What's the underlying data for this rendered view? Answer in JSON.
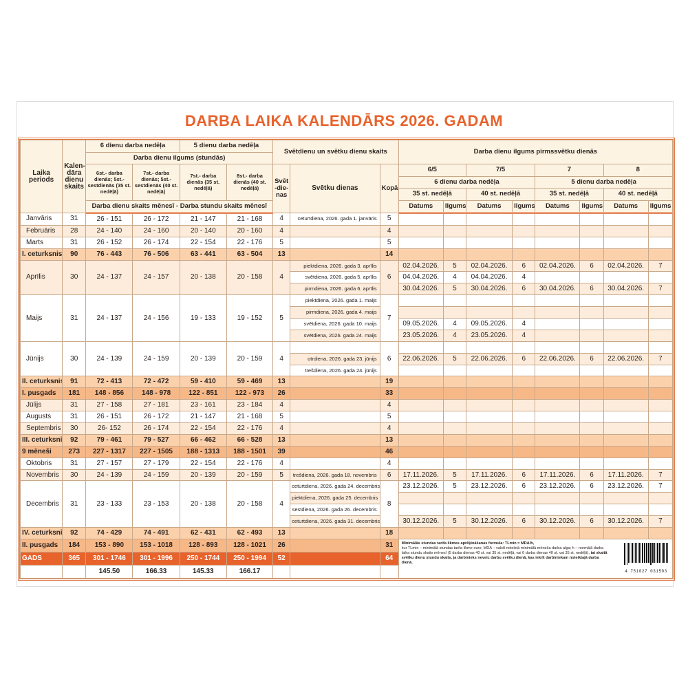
{
  "title": "DARBA LAIKA KALENDĀRS 2026. GADAM",
  "colors": {
    "accent": "#e8622c",
    "header_bg": "#fdf3e2",
    "stripe": "#fdecdb",
    "quarter": "#fbd1ac",
    "half": "#f7b888"
  },
  "header": {
    "period": "Laika periods",
    "calendar_days": "Kalen-dāra dienu skaits",
    "six_day_week": "6 dienu darba nedēļa",
    "five_day_week": "5 dienu darba nedēļa",
    "day_length": "Darba dienu ilgums (stundās)",
    "col1": "6st.- darba dienās; 5st.-sestdienās (35 st. nedēļā)",
    "col2": "7st.- darba dienās; 5st.- sestdienās (40 st. nedēļā)",
    "col3": "7st.- darba dienās (35 st. nedēļā)",
    "col4": "8st.- darba dienās (40 st. nedēļā)",
    "days_hours": "Darba dienu skaits mēnesī - Darba stundu skaits mēnesī",
    "holidays_group": "Svētdienu un svētku dienu skaits",
    "sundays": "Svēt-die-nas",
    "holidays": "Svētku dienas",
    "total": "Kopā",
    "pre_holiday": "Darba dienu ilgums pirmssvētku dienās",
    "modes": [
      "6/5",
      "7/5",
      "7",
      "8"
    ],
    "weeks": [
      "6 dienu darba nedēļa",
      "5 dienu darba nedēļa"
    ],
    "hours_week": [
      "35 st. nedēļā",
      "40 st. nedēļā",
      "35 st. nedēļā",
      "40 st. nedēļā"
    ],
    "date": "Datums",
    "length": "Ilgums"
  },
  "rows": [
    {
      "type": "month",
      "period": "Janvāris",
      "days": "31",
      "v": [
        "26 - 151",
        "26 - 172",
        "21 - 147",
        "21 - 168"
      ],
      "sundays": "4",
      "total": "5",
      "subs": [
        {
          "hol": "ceturtdiena, 2026. gada 1. janvāris",
          "pre": [
            "",
            "",
            "",
            "",
            "",
            "",
            "",
            ""
          ]
        }
      ]
    },
    {
      "type": "month",
      "period": "Februāris",
      "days": "28",
      "v": [
        "24 - 140",
        "24 - 160",
        "20 - 140",
        "20 - 160"
      ],
      "sundays": "4",
      "total": "4",
      "subs": [
        {
          "hol": "",
          "pre": [
            "",
            "",
            "",
            "",
            "",
            "",
            "",
            ""
          ]
        }
      ]
    },
    {
      "type": "month",
      "period": "Marts",
      "days": "31",
      "v": [
        "26 - 152",
        "26 - 174",
        "22 - 154",
        "22 - 176"
      ],
      "sundays": "5",
      "total": "5",
      "subs": [
        {
          "hol": "",
          "pre": [
            "",
            "",
            "",
            "",
            "",
            "",
            "",
            ""
          ]
        }
      ]
    },
    {
      "type": "quarter",
      "period": "I. ceturksnis",
      "days": "90",
      "v": [
        "76 - 443",
        "76 - 506",
        "63 - 441",
        "63 - 504"
      ],
      "sundays": "13",
      "total": "14",
      "subs": [
        {
          "hol": "",
          "pre": [
            "",
            "",
            "",
            "",
            "",
            "",
            "",
            ""
          ]
        }
      ]
    },
    {
      "type": "month",
      "period": "Aprīlis",
      "days": "30",
      "v": [
        "24 - 137",
        "24 - 157",
        "20 - 138",
        "20 - 158"
      ],
      "sundays": "4",
      "total": "6",
      "subs": [
        {
          "hol": "piektdiena, 2026. gada 3. aprīlis",
          "pre": [
            "02.04.2026.",
            "5",
            "02.04.2026.",
            "6",
            "02.04.2026.",
            "6",
            "02.04.2026.",
            "7"
          ]
        },
        {
          "hol": "svētdiena, 2026. gada 5. aprīlis",
          "pre": [
            "04.04.2026.",
            "4",
            "04.04.2026.",
            "4",
            "",
            "",
            "",
            ""
          ]
        },
        {
          "hol": "pirmdiena, 2026. gada 6. aprīlis",
          "pre": [
            "30.04.2026.",
            "5",
            "30.04.2026.",
            "6",
            "30.04.2026.",
            "6",
            "30.04.2026.",
            "7"
          ]
        }
      ]
    },
    {
      "type": "month",
      "period": "Maijs",
      "days": "31",
      "v": [
        "24 - 137",
        "24 - 156",
        "19 - 133",
        "19 - 152"
      ],
      "sundays": "5",
      "total": "7",
      "subs": [
        {
          "hol": "piektdiena, 2026. gada 1. maijs",
          "pre": [
            "",
            "",
            "",
            "",
            "",
            "",
            "",
            ""
          ]
        },
        {
          "hol": "pirmdiena, 2026. gada 4. maijs",
          "pre": [
            "",
            "",
            "",
            "",
            "",
            "",
            "",
            ""
          ]
        },
        {
          "hol": "svētdiena, 2026. gada 10. maijs",
          "pre": [
            "09.05.2026.",
            "4",
            "09.05.2026.",
            "4",
            "",
            "",
            "",
            ""
          ]
        },
        {
          "hol": "svētdiena, 2026. gada 24. maijs",
          "pre": [
            "23.05.2026.",
            "4",
            "23.05.2026.",
            "4",
            "",
            "",
            "",
            ""
          ]
        }
      ]
    },
    {
      "type": "month",
      "period": "Jūnijs",
      "days": "30",
      "v": [
        "24 - 139",
        "24 - 159",
        "20 - 139",
        "20 - 159"
      ],
      "sundays": "4",
      "total": "6",
      "subs": [
        {
          "hol": "",
          "pre": [
            "",
            "",
            "",
            "",
            "",
            "",
            "",
            ""
          ]
        },
        {
          "hol": "otrdiena, 2026. gada 23. jūnijs",
          "pre": [
            "22.06.2026.",
            "5",
            "22.06.2026.",
            "6",
            "22.06.2026.",
            "6",
            "22.06.2026.",
            "7"
          ]
        },
        {
          "hol": "trešdiena, 2026. gada 24. jūnijs",
          "pre": [
            "",
            "",
            "",
            "",
            "",
            "",
            "",
            ""
          ]
        }
      ]
    },
    {
      "type": "quarter",
      "period": "II. ceturksnis",
      "days": "91",
      "v": [
        "72 - 413",
        "72 - 472",
        "59 - 410",
        "59 - 469"
      ],
      "sundays": "13",
      "total": "19",
      "subs": [
        {
          "hol": "",
          "pre": [
            "",
            "",
            "",
            "",
            "",
            "",
            "",
            ""
          ]
        }
      ]
    },
    {
      "type": "half",
      "period": "I. pusgads",
      "days": "181",
      "v": [
        "148 - 856",
        "148 - 978",
        "122 - 851",
        "122 - 973"
      ],
      "sundays": "26",
      "total": "33",
      "subs": [
        {
          "hol": "",
          "pre": [
            "",
            "",
            "",
            "",
            "",
            "",
            "",
            ""
          ]
        }
      ]
    },
    {
      "type": "month",
      "period": "Jūlijs",
      "days": "31",
      "v": [
        "27 - 158",
        "27 - 181",
        "23 - 161",
        "23 - 184"
      ],
      "sundays": "4",
      "total": "4",
      "subs": [
        {
          "hol": "",
          "pre": [
            "",
            "",
            "",
            "",
            "",
            "",
            "",
            ""
          ]
        }
      ]
    },
    {
      "type": "month",
      "period": "Augusts",
      "days": "31",
      "v": [
        "26 - 151",
        "26 - 172",
        "21 - 147",
        "21 - 168"
      ],
      "sundays": "5",
      "total": "5",
      "subs": [
        {
          "hol": "",
          "pre": [
            "",
            "",
            "",
            "",
            "",
            "",
            "",
            ""
          ]
        }
      ]
    },
    {
      "type": "month",
      "period": "Septembris",
      "days": "30",
      "v": [
        "26- 152",
        "26 - 174",
        "22 - 154",
        "22 - 176"
      ],
      "sundays": "4",
      "total": "4",
      "subs": [
        {
          "hol": "",
          "pre": [
            "",
            "",
            "",
            "",
            "",
            "",
            "",
            ""
          ]
        }
      ]
    },
    {
      "type": "quarter",
      "period": "III. ceturksnis",
      "days": "92",
      "v": [
        "79 - 461",
        "79 - 527",
        "66 - 462",
        "66 - 528"
      ],
      "sundays": "13",
      "total": "13",
      "subs": [
        {
          "hol": "",
          "pre": [
            "",
            "",
            "",
            "",
            "",
            "",
            "",
            ""
          ]
        }
      ]
    },
    {
      "type": "half",
      "period": "9 mēneši",
      "days": "273",
      "v": [
        "227 - 1317",
        "227 - 1505",
        "188 - 1313",
        "188 - 1501"
      ],
      "sundays": "39",
      "total": "46",
      "subs": [
        {
          "hol": "",
          "pre": [
            "",
            "",
            "",
            "",
            "",
            "",
            "",
            ""
          ]
        }
      ]
    },
    {
      "type": "month",
      "period": "Oktobris",
      "days": "31",
      "v": [
        "27 - 157",
        "27 - 179",
        "22 - 154",
        "22 - 176"
      ],
      "sundays": "4",
      "total": "4",
      "subs": [
        {
          "hol": "",
          "pre": [
            "",
            "",
            "",
            "",
            "",
            "",
            "",
            ""
          ]
        }
      ]
    },
    {
      "type": "month",
      "period": "Novembris",
      "days": "30",
      "v": [
        "24 - 139",
        "24 - 159",
        "20 - 139",
        "20 - 159"
      ],
      "sundays": "5",
      "total": "6",
      "subs": [
        {
          "hol": "trešdiena, 2026. gada 18. novembris",
          "pre": [
            "17.11.2026.",
            "5",
            "17.11.2026.",
            "6",
            "17.11.2026.",
            "6",
            "17.11.2026.",
            "7"
          ]
        }
      ]
    },
    {
      "type": "month",
      "period": "Decembris",
      "days": "31",
      "v": [
        "23 - 133",
        "23 - 153",
        "20 - 138",
        "20 - 158"
      ],
      "sundays": "4",
      "total": "8",
      "subs": [
        {
          "hol": "ceturtdiena, 2026. gada 24. decembris",
          "pre": [
            "23.12.2026.",
            "5",
            "23.12.2026.",
            "6",
            "23.12.2026.",
            "6",
            "23.12.2026.",
            "7"
          ]
        },
        {
          "hol": "piektdiena, 2026. gada 25. decembris",
          "pre": [
            "",
            "",
            "",
            "",
            "",
            "",
            "",
            ""
          ]
        },
        {
          "hol": "sestdiena, 2026. gada 26. decembris",
          "pre": [
            "",
            "",
            "",
            "",
            "",
            "",
            "",
            ""
          ]
        },
        {
          "hol": "ceturtdiena, 2026. gada 31. decembris",
          "pre": [
            "30.12.2026.",
            "5",
            "30.12.2026.",
            "6",
            "30.12.2026.",
            "6",
            "30.12.2026.",
            "7"
          ]
        }
      ]
    },
    {
      "type": "quarter",
      "period": "IV. ceturksnis",
      "days": "92",
      "v": [
        "74 - 429",
        "74 - 491",
        "62 - 431",
        "62 - 493"
      ],
      "sundays": "13",
      "total": "18",
      "subs": [
        {
          "hol": "",
          "pre": [
            "",
            "",
            "",
            "",
            "",
            "",
            "",
            ""
          ]
        }
      ]
    },
    {
      "type": "half",
      "period": "II. pusgads",
      "days": "184",
      "v": [
        "153 - 890",
        "153 - 1018",
        "128 - 893",
        "128 - 1021"
      ],
      "sundays": "26",
      "total": "31",
      "subs": [
        {
          "hol": ""
        }
      ]
    },
    {
      "type": "year",
      "period": "GADS",
      "days": "365",
      "v": [
        "301 - 1746",
        "301 - 1996",
        "250 - 1744",
        "250 - 1994"
      ],
      "sundays": "52",
      "total": "64",
      "subs": [
        {
          "hol": ""
        }
      ]
    },
    {
      "type": "avg",
      "period": "",
      "days": "",
      "v": [
        "145.50",
        "166.33",
        "145.33",
        "166.17"
      ],
      "sundays": "",
      "total": "",
      "subs": [
        {
          "hol": ""
        }
      ]
    }
  ],
  "note": {
    "line1": "Minimālās stundas tarifa likmes aprēķināšanas formula: TLmin = MDA/h,",
    "body": "kur TLmin – minimālā stundas tarifa likme euro; MDA – valstī noteiktā minimālā mēneša darba alga; h – normālā darba laika stundu skaits mēnesī (5 darba dienas 40 st. vai 35 st. nedēļā, vai 6 darba dienas 40 st. vai 35 st. nedēļā),",
    "bold_tail": "tai skaitā svētku dienu stundu skaits, ja darbinieks neveic darbu svētku dienā, kas iekrīt darbiniekam noteiktajā darba dienā."
  },
  "barcode": "4 751027 031503"
}
